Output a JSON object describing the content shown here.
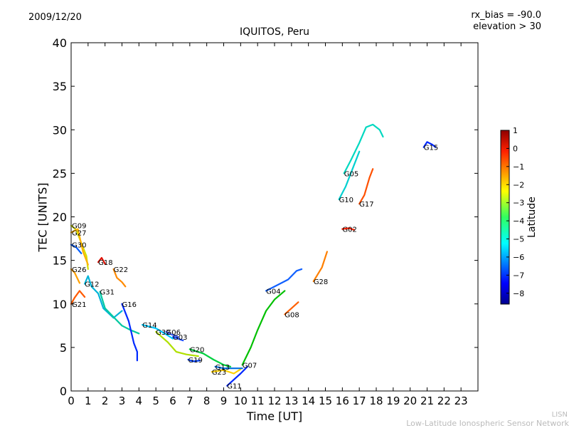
{
  "header": {
    "date": "2009/12/20",
    "title": "IQUITOS, Peru",
    "rx_bias": "rx_bias = -90.0",
    "elevation": "elevation > 30"
  },
  "footer": {
    "line1": "LISN",
    "line2": "Low-Latitude Ionospheric Sensor Network"
  },
  "chart_data": {
    "type": "line",
    "title": "IQUITOS, Peru",
    "xlabel": "Time [UT]",
    "ylabel": "TEC [UNITS]",
    "xlim": [
      0,
      24
    ],
    "ylim": [
      0,
      40
    ],
    "xticks": [
      0,
      1,
      2,
      3,
      4,
      5,
      6,
      7,
      8,
      9,
      10,
      11,
      12,
      13,
      14,
      15,
      16,
      17,
      18,
      19,
      20,
      21,
      22,
      23
    ],
    "yticks": [
      0,
      5,
      10,
      15,
      20,
      25,
      30,
      35,
      40
    ],
    "grid": false,
    "colorbar": {
      "label": "Latitude",
      "range": [
        -8.6,
        1.0
      ],
      "ticks": [
        1,
        0,
        -1,
        -2,
        -3,
        -4,
        -5,
        -6,
        -7,
        -8
      ]
    },
    "series": [
      {
        "name": "G09",
        "color": "#d4e000",
        "points": [
          [
            0.0,
            19.0
          ],
          [
            0.3,
            18.5
          ],
          [
            0.6,
            17.0
          ],
          [
            0.9,
            15.5
          ],
          [
            1.0,
            14.0
          ]
        ]
      },
      {
        "name": "G27",
        "color": "#ffb000",
        "points": [
          [
            0.0,
            18.2
          ],
          [
            0.4,
            18.6
          ],
          [
            0.7,
            16.0
          ],
          [
            1.0,
            14.5
          ]
        ]
      },
      {
        "name": "G30",
        "color": "#005dff",
        "points": [
          [
            0.0,
            16.8
          ],
          [
            0.3,
            16.5
          ],
          [
            0.6,
            15.8
          ]
        ]
      },
      {
        "name": "G18",
        "color": "#e01000",
        "points": [
          [
            1.6,
            14.8
          ],
          [
            1.8,
            15.3
          ],
          [
            2.0,
            14.6
          ]
        ]
      },
      {
        "name": "G26",
        "color": "#ffa000",
        "points": [
          [
            0.0,
            14.0
          ],
          [
            0.2,
            13.6
          ],
          [
            0.5,
            12.4
          ]
        ]
      },
      {
        "name": "G12",
        "color": "#00b4d8",
        "points": [
          [
            0.8,
            12.3
          ],
          [
            1.0,
            13.2
          ],
          [
            1.2,
            12.0
          ],
          [
            1.6,
            11.2
          ],
          [
            1.9,
            9.5
          ],
          [
            2.5,
            8.4
          ],
          [
            3.0,
            9.2
          ]
        ]
      },
      {
        "name": "G22",
        "color": "#ff8a00",
        "points": [
          [
            2.5,
            14.0
          ],
          [
            2.7,
            13.0
          ],
          [
            3.0,
            12.5
          ],
          [
            3.2,
            12.0
          ]
        ]
      },
      {
        "name": "G21",
        "color": "#ff5a00",
        "points": [
          [
            0.0,
            10.0
          ],
          [
            0.2,
            10.7
          ],
          [
            0.5,
            11.5
          ],
          [
            0.8,
            10.8
          ]
        ]
      },
      {
        "name": "G31",
        "color": "#00c8a0",
        "points": [
          [
            1.7,
            11.4
          ],
          [
            2.0,
            9.5
          ],
          [
            2.5,
            8.5
          ],
          [
            3.0,
            7.5
          ],
          [
            3.5,
            7.0
          ],
          [
            4.0,
            6.6
          ]
        ]
      },
      {
        "name": "G16",
        "color": "#002aff",
        "points": [
          [
            3.0,
            10.0
          ],
          [
            3.4,
            8.0
          ],
          [
            3.7,
            5.5
          ],
          [
            3.9,
            4.5
          ],
          [
            3.9,
            3.5
          ]
        ]
      },
      {
        "name": "G14",
        "color": "#00c8ff",
        "points": [
          [
            4.2,
            7.6
          ],
          [
            5.0,
            7.2
          ],
          [
            5.6,
            6.5
          ],
          [
            6.0,
            6.0
          ]
        ]
      },
      {
        "name": "G06",
        "color": "#4060ff",
        "points": [
          [
            5.6,
            6.8
          ],
          [
            5.9,
            6.5
          ],
          [
            6.3,
            6.2
          ]
        ]
      },
      {
        "name": "G03",
        "color": "#2050ff",
        "points": [
          [
            6.0,
            6.2
          ],
          [
            6.3,
            6.0
          ],
          [
            6.6,
            5.8
          ]
        ]
      },
      {
        "name": "G32",
        "color": "#b0e000",
        "points": [
          [
            5.0,
            6.8
          ],
          [
            5.7,
            5.6
          ],
          [
            6.2,
            4.5
          ],
          [
            6.8,
            4.2
          ],
          [
            7.5,
            4.0
          ]
        ]
      },
      {
        "name": "G19",
        "color": "#0040ff",
        "points": [
          [
            6.9,
            3.6
          ],
          [
            7.2,
            3.4
          ],
          [
            7.6,
            3.5
          ]
        ]
      },
      {
        "name": "G20",
        "color": "#00d040",
        "points": [
          [
            7.0,
            4.8
          ],
          [
            7.8,
            4.3
          ],
          [
            8.4,
            3.6
          ],
          [
            9.0,
            3.0
          ],
          [
            9.4,
            2.8
          ]
        ]
      },
      {
        "name": "G23",
        "color": "#ffd000",
        "points": [
          [
            8.3,
            2.2
          ],
          [
            9.0,
            2.4
          ],
          [
            9.6,
            2.0
          ],
          [
            10.0,
            2.5
          ]
        ]
      },
      {
        "name": "G13",
        "color": "#0070e0",
        "points": [
          [
            8.5,
            2.8
          ],
          [
            9.0,
            2.6
          ],
          [
            9.5,
            2.6
          ],
          [
            10.1,
            2.6
          ]
        ]
      },
      {
        "name": "G11",
        "color": "#0028ff",
        "points": [
          [
            9.2,
            0.6
          ],
          [
            9.6,
            1.3
          ],
          [
            10.0,
            2.0
          ],
          [
            10.4,
            2.8
          ]
        ]
      },
      {
        "name": "G07",
        "color": "#00c000",
        "points": [
          [
            10.1,
            3.0
          ],
          [
            10.6,
            5.0
          ],
          [
            11.0,
            7.0
          ],
          [
            11.5,
            9.2
          ],
          [
            12.0,
            10.5
          ],
          [
            12.6,
            11.5
          ]
        ]
      },
      {
        "name": "G08",
        "color": "#ff6000",
        "points": [
          [
            12.6,
            8.8
          ],
          [
            13.0,
            9.5
          ],
          [
            13.4,
            10.2
          ]
        ]
      },
      {
        "name": "G04",
        "color": "#1060ff",
        "points": [
          [
            11.5,
            11.5
          ],
          [
            12.2,
            12.2
          ],
          [
            12.8,
            12.8
          ],
          [
            13.3,
            13.8
          ],
          [
            13.6,
            14.0
          ]
        ]
      },
      {
        "name": "G28",
        "color": "#ff8000",
        "points": [
          [
            14.3,
            12.6
          ],
          [
            14.8,
            14.2
          ],
          [
            15.1,
            16.0
          ]
        ]
      },
      {
        "name": "G02",
        "color": "#ff2000",
        "points": [
          [
            16.0,
            18.6
          ],
          [
            16.4,
            18.7
          ],
          [
            16.7,
            18.5
          ]
        ]
      },
      {
        "name": "G10",
        "color": "#00d0d0",
        "points": [
          [
            15.8,
            22.0
          ],
          [
            16.2,
            23.5
          ],
          [
            16.6,
            25.5
          ],
          [
            17.0,
            27.5
          ]
        ]
      },
      {
        "name": "G05",
        "color": "#00d8c0",
        "points": [
          [
            16.1,
            25.0
          ],
          [
            16.5,
            26.5
          ],
          [
            17.0,
            28.5
          ],
          [
            17.4,
            30.3
          ],
          [
            17.8,
            30.6
          ],
          [
            18.2,
            30.0
          ],
          [
            18.4,
            29.2
          ]
        ]
      },
      {
        "name": "G17",
        "color": "#ff5000",
        "points": [
          [
            17.0,
            21.5
          ],
          [
            17.3,
            22.5
          ],
          [
            17.6,
            24.5
          ],
          [
            17.8,
            25.5
          ]
        ]
      },
      {
        "name": "G15",
        "color": "#0028ff",
        "points": [
          [
            20.8,
            28.0
          ],
          [
            21.0,
            28.6
          ],
          [
            21.3,
            28.3
          ],
          [
            21.5,
            28.0
          ]
        ]
      }
    ]
  }
}
